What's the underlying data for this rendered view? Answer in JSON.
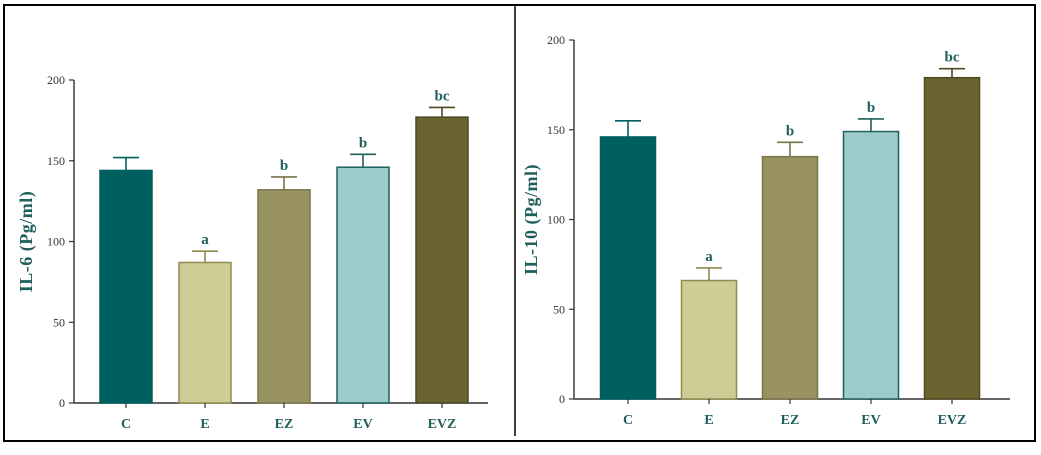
{
  "colors": {
    "axis": "#333333",
    "label": "#1f5f5c",
    "bars": [
      "#00605f",
      "#cfcd95",
      "#999361",
      "#9dcbcc",
      "#6b6430"
    ],
    "bar_edges": [
      "#00605f",
      "#8f8b50",
      "#7a7548",
      "#1f5f5c",
      "#4d4820"
    ]
  },
  "chart_data": [
    {
      "type": "bar",
      "ylabel": "IL-6 (Pg/ml)",
      "xlabel": "",
      "categories": [
        "C",
        "E",
        "EZ",
        "EV",
        "EVZ"
      ],
      "values": [
        144,
        87,
        132,
        146,
        177
      ],
      "errors": [
        8,
        7,
        8,
        8,
        6
      ],
      "annotations": [
        "",
        "a",
        "b",
        "b",
        "bc"
      ],
      "ylim": [
        0,
        200
      ],
      "yticks": [
        0,
        50,
        100,
        150,
        200
      ],
      "ytick_labels": [
        "0",
        "50",
        "100",
        "150",
        "200"
      ],
      "grid": false
    },
    {
      "type": "bar",
      "ylabel": "IL-10 (Pg/ml)",
      "xlabel": "",
      "categories": [
        "C",
        "E",
        "EZ",
        "EV",
        "EVZ"
      ],
      "values": [
        146,
        66,
        135,
        149,
        179
      ],
      "errors": [
        9,
        7,
        8,
        7,
        5
      ],
      "annotations": [
        "",
        "a",
        "b",
        "b",
        "bc"
      ],
      "ylim": [
        0,
        200
      ],
      "yticks": [
        0,
        50,
        100,
        150,
        200
      ],
      "ytick_labels": [
        "0",
        "50",
        "100",
        "150",
        "200"
      ],
      "grid": false
    }
  ]
}
